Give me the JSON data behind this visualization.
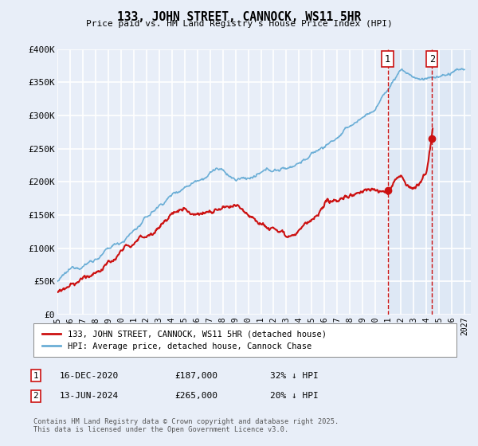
{
  "title": "133, JOHN STREET, CANNOCK, WS11 5HR",
  "subtitle": "Price paid vs. HM Land Registry's House Price Index (HPI)",
  "ylabel_ticks": [
    "£0",
    "£50K",
    "£100K",
    "£150K",
    "£200K",
    "£250K",
    "£300K",
    "£350K",
    "£400K"
  ],
  "ytick_values": [
    0,
    50000,
    100000,
    150000,
    200000,
    250000,
    300000,
    350000,
    400000
  ],
  "ylim": [
    0,
    400000
  ],
  "xlim_start": 1995.0,
  "xlim_end": 2027.5,
  "hpi_color": "#6baed6",
  "price_color": "#cc1111",
  "marker1_x": 2020.96,
  "marker1_y": 187000,
  "marker2_x": 2024.45,
  "marker2_y": 265000,
  "marker1_label": "1",
  "marker2_label": "2",
  "annotation1_date": "16-DEC-2020",
  "annotation1_price": "£187,000",
  "annotation1_hpi": "32% ↓ HPI",
  "annotation2_date": "13-JUN-2024",
  "annotation2_price": "£265,000",
  "annotation2_hpi": "20% ↓ HPI",
  "legend_line1": "133, JOHN STREET, CANNOCK, WS11 5HR (detached house)",
  "legend_line2": "HPI: Average price, detached house, Cannock Chase",
  "footer": "Contains HM Land Registry data © Crown copyright and database right 2025.\nThis data is licensed under the Open Government Licence v3.0.",
  "background_color": "#e8eef8",
  "plot_bg_color": "#e8eef8",
  "grid_color": "#ffffff",
  "vline_color": "#cc1111",
  "shade_color": "#ccddf0"
}
